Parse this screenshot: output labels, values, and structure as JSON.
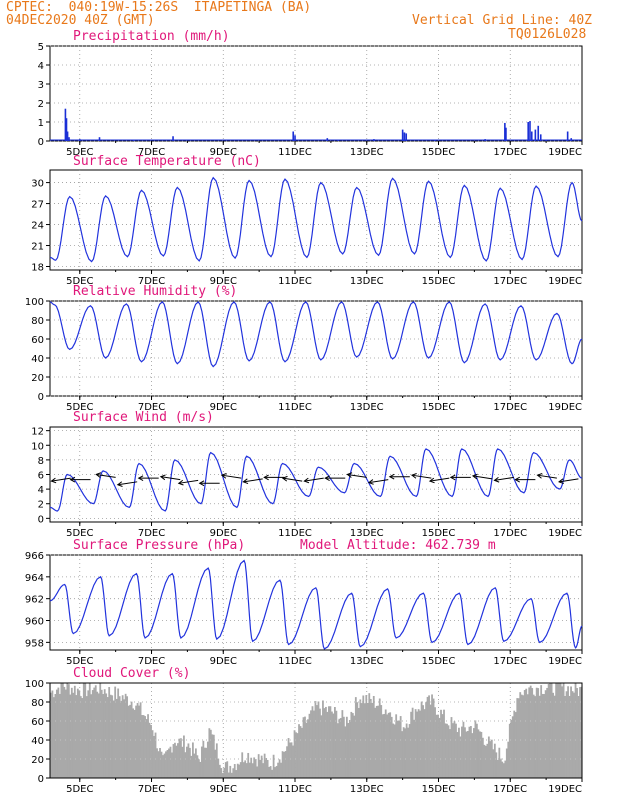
{
  "header": {
    "line1_left": "CPTEC:  040:19W-15:26S  ITAPETINGA (BA)",
    "line2_left": "04DEC2020 40Z (GMT)",
    "line2_right": "Vertical Grid Line: 40Z",
    "line3_right": "TQ0126L028"
  },
  "colors": {
    "header": "#e8781a",
    "title": "#e0177a",
    "line": "#2233dd",
    "bar": "#1a2fd6",
    "cloud": "#a9a9a9",
    "grid": "#9a9a9a"
  },
  "chart_data": [
    {
      "type": "bar",
      "title": "Precipitation (mm/h)",
      "x_tick_labels": [
        "5DEC",
        "7DEC",
        "9DEC",
        "11DEC",
        "13DEC",
        "15DEC",
        "17DEC",
        "19DEC"
      ],
      "x_range_days": [
        4.17,
        19.0
      ],
      "ylim": [
        0,
        5
      ],
      "yticks": [
        0,
        1,
        2,
        3,
        4,
        5
      ],
      "events": [
        [
          4.6,
          1.7
        ],
        [
          4.63,
          1.2
        ],
        [
          4.66,
          0.5
        ],
        [
          4.7,
          0.2
        ],
        [
          5.0,
          0.1
        ],
        [
          5.55,
          0.2
        ],
        [
          6.5,
          0.05
        ],
        [
          7.6,
          0.25
        ],
        [
          10.95,
          0.5
        ],
        [
          11.0,
          0.3
        ],
        [
          11.9,
          0.15
        ],
        [
          12.2,
          0.05
        ],
        [
          13.2,
          0.1
        ],
        [
          14.0,
          0.6
        ],
        [
          14.05,
          0.45
        ],
        [
          14.1,
          0.4
        ],
        [
          14.9,
          0.05
        ],
        [
          16.3,
          0.1
        ],
        [
          16.85,
          0.95
        ],
        [
          16.88,
          0.7
        ],
        [
          17.5,
          1.0
        ],
        [
          17.55,
          1.05
        ],
        [
          17.6,
          0.5
        ],
        [
          17.7,
          0.6
        ],
        [
          17.78,
          0.8
        ],
        [
          17.85,
          0.35
        ],
        [
          18.0,
          0.05
        ],
        [
          18.6,
          0.5
        ],
        [
          18.7,
          0.15
        ]
      ],
      "baseline": 0.05
    },
    {
      "type": "line",
      "title": "Surface Temperature (nC)",
      "x_tick_labels": [
        "5DEC",
        "7DEC",
        "9DEC",
        "11DEC",
        "13DEC",
        "15DEC",
        "17DEC",
        "19DEC"
      ],
      "ylim": [
        17.5,
        31.8
      ],
      "yticks": [
        18,
        21,
        24,
        27,
        30
      ],
      "daily_max": [
        28.0,
        28.1,
        28.9,
        29.3,
        30.7,
        30.3,
        30.5,
        30.0,
        29.3,
        30.6,
        30.2,
        29.6,
        29.2,
        29.5,
        30.0
      ],
      "daily_min": [
        18.9,
        18.7,
        19.4,
        19.5,
        18.8,
        19.2,
        19.4,
        19.3,
        19.8,
        19.6,
        19.8,
        19.3,
        18.8,
        19.0,
        19.4
      ],
      "start_value": 19.3,
      "end_value": 24.5
    },
    {
      "type": "line",
      "title": "Relative Humidity (%)",
      "x_tick_labels": [
        "5DEC",
        "7DEC",
        "9DEC",
        "11DEC",
        "13DEC",
        "15DEC",
        "17DEC",
        "19DEC"
      ],
      "ylim": [
        0,
        100
      ],
      "yticks": [
        0,
        20,
        40,
        60,
        80,
        100
      ],
      "daily_max": [
        96,
        95,
        97,
        99,
        99,
        99,
        99,
        99,
        99,
        99,
        99,
        99,
        97,
        95,
        87
      ],
      "daily_min": [
        49,
        40,
        36,
        34,
        31,
        37,
        36,
        38,
        41,
        39,
        40,
        35,
        38,
        38,
        34
      ],
      "start_value": 99,
      "end_value": 60
    },
    {
      "type": "line",
      "title": "Surface Wind (m/s)",
      "x_tick_labels": [
        "5DEC",
        "7DEC",
        "9DEC",
        "11DEC",
        "13DEC",
        "15DEC",
        "17DEC",
        "19DEC"
      ],
      "ylim": [
        -0.5,
        12.5
      ],
      "yticks": [
        0,
        2,
        4,
        6,
        8,
        10,
        12
      ],
      "daily_max": [
        6.0,
        6.5,
        7.5,
        8.0,
        9.0,
        8.5,
        7.5,
        7.0,
        7.5,
        8.5,
        9.5,
        9.5,
        9.5,
        9.0,
        8.0
      ],
      "daily_min": [
        1.0,
        2.0,
        1.5,
        1.0,
        2.0,
        1.5,
        2.0,
        3.0,
        3.5,
        3.0,
        3.0,
        3.0,
        3.0,
        3.5,
        4.0
      ],
      "start_value": 1.5,
      "end_value": 5.5,
      "arrow_days": [
        4.75,
        5.3,
        6.0,
        6.6,
        7.2,
        7.8,
        8.3,
        8.9,
        9.5,
        10.1,
        10.7,
        11.2,
        11.8,
        12.4,
        13.0,
        13.6,
        14.2,
        14.8,
        15.3,
        15.9,
        16.5,
        17.1,
        17.7,
        18.3,
        18.9
      ],
      "arrow_values": [
        5.5,
        5.3,
        5.6,
        5.0,
        5.5,
        5.3,
        5.2,
        4.8,
        5.5,
        5.4,
        5.6,
        5.1,
        5.5,
        5.5,
        5.6,
        5.3,
        5.7,
        5.5,
        5.5,
        5.6,
        5.4,
        5.6,
        5.3,
        5.5,
        5.4
      ]
    },
    {
      "type": "line",
      "title": "Surface Pressure (hPa)",
      "subtitle": "Model Altitude: 462.739 m",
      "x_tick_labels": [
        "5DEC",
        "7DEC",
        "9DEC",
        "11DEC",
        "13DEC",
        "15DEC",
        "17DEC",
        "19DEC"
      ],
      "ylim": [
        957.3,
        966.0
      ],
      "yticks": [
        958,
        960,
        962,
        964,
        966
      ],
      "daily_max": [
        963.3,
        964.0,
        964.3,
        964.3,
        964.8,
        965.5,
        963.7,
        963.0,
        962.5,
        962.9,
        962.5,
        962.5,
        963.0,
        962.0,
        962.5
      ],
      "daily_min": [
        958.8,
        958.6,
        958.4,
        958.4,
        958.3,
        958.1,
        957.8,
        957.4,
        957.6,
        958.4,
        958.0,
        957.8,
        958.1,
        958.0,
        957.5
      ],
      "start_value": 961.8,
      "end_value": 959.5
    },
    {
      "type": "area",
      "title": "Cloud Cover (%)",
      "x_tick_labels": [
        "5DEC",
        "7DEC",
        "9DEC",
        "11DEC",
        "13DEC",
        "15DEC",
        "17DEC",
        "19DEC"
      ],
      "ylim": [
        0,
        100
      ],
      "yticks": [
        0,
        20,
        40,
        60,
        80,
        100
      ],
      "x_days": [
        4.17,
        4.5,
        5.0,
        5.5,
        6.0,
        6.5,
        7.0,
        7.3,
        7.6,
        8.0,
        8.3,
        8.6,
        8.8,
        9.0,
        9.3,
        9.6,
        10.0,
        10.3,
        10.6,
        11.0,
        11.3,
        11.6,
        12.0,
        12.4,
        12.8,
        13.2,
        13.6,
        14.0,
        14.4,
        14.8,
        15.2,
        15.6,
        16.0,
        16.4,
        16.8,
        17.2,
        17.6,
        18.0,
        18.5,
        19.0
      ],
      "values": [
        90,
        98,
        92,
        95,
        88,
        80,
        55,
        15,
        40,
        35,
        20,
        50,
        30,
        10,
        15,
        25,
        20,
        15,
        25,
        45,
        60,
        75,
        70,
        60,
        85,
        80,
        70,
        55,
        75,
        80,
        60,
        50,
        55,
        35,
        20,
        90,
        95,
        96,
        95,
        92
      ]
    }
  ]
}
